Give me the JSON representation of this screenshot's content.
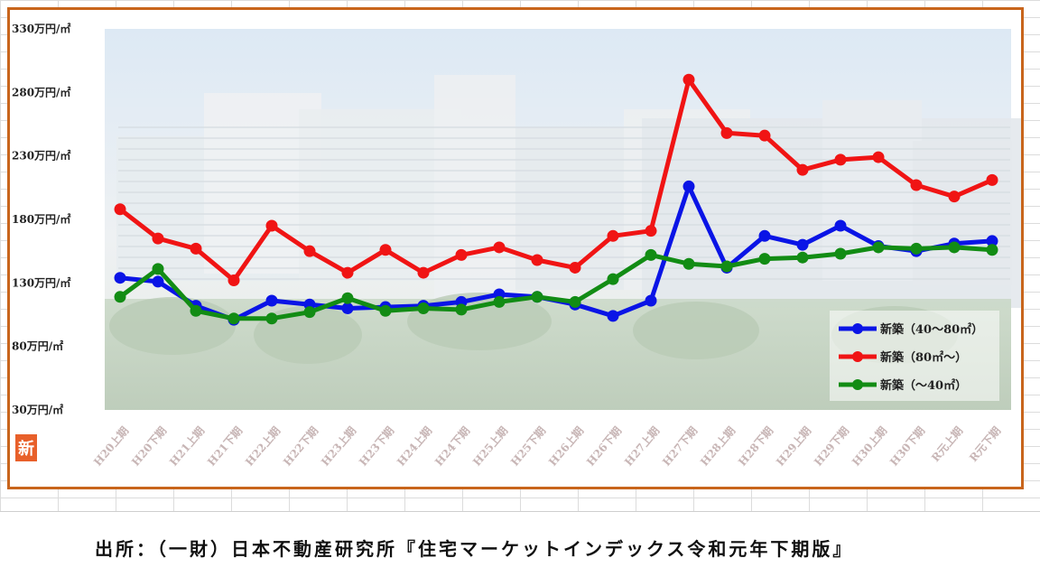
{
  "chart_data": {
    "type": "line",
    "title": "",
    "xlabel": "",
    "ylabel": "",
    "ylim": [
      30,
      330
    ],
    "yticks": [
      "330万円/㎡",
      "280万円/㎡",
      "230万円/㎡",
      "180万円/㎡",
      "130万円/㎡",
      "80万円/㎡",
      "30万円/㎡"
    ],
    "ytick_values": [
      330,
      280,
      230,
      180,
      130,
      80,
      30
    ],
    "categories": [
      "H20上期",
      "H20下期",
      "H21上期",
      "H21下期",
      "H22上期",
      "H22下期",
      "H23上期",
      "H23下期",
      "H24上期",
      "H24下期",
      "H25上期",
      "H25下期",
      "H26上期",
      "H26下期",
      "H27上期",
      "H27下期",
      "H28上期",
      "H28下期",
      "H29上期",
      "H29下期",
      "H30上期",
      "H30下期",
      "R元上期",
      "R元下期"
    ],
    "series": [
      {
        "name": "新築（40～80㎡）",
        "color": "#0a14e6",
        "values": [
          134,
          131,
          112,
          101,
          116,
          113,
          110,
          111,
          112,
          115,
          121,
          119,
          113,
          104,
          116,
          206,
          142,
          167,
          160,
          175,
          159,
          155,
          161,
          163
        ]
      },
      {
        "name": "新築（80㎡～）",
        "color": "#f01414",
        "values": [
          188,
          165,
          157,
          132,
          175,
          155,
          138,
          156,
          138,
          152,
          158,
          148,
          142,
          167,
          171,
          290,
          248,
          246,
          219,
          227,
          229,
          207,
          198,
          211
        ]
      },
      {
        "name": "新築（～40㎡）",
        "color": "#128c14",
        "values": [
          119,
          141,
          108,
          102,
          102,
          107,
          118,
          108,
          110,
          109,
          115,
          119,
          115,
          133,
          152,
          145,
          143,
          149,
          150,
          153,
          158,
          157,
          158,
          156
        ]
      }
    ],
    "legend_position": "bottom-right",
    "grid": false
  },
  "source_note": "出所：（一財）日本不動産研究所『住宅マーケットインデックス令和元年下期版』",
  "logo_text": "新",
  "colors": {
    "frame": "#c8651c",
    "logo": "#e8602a"
  }
}
